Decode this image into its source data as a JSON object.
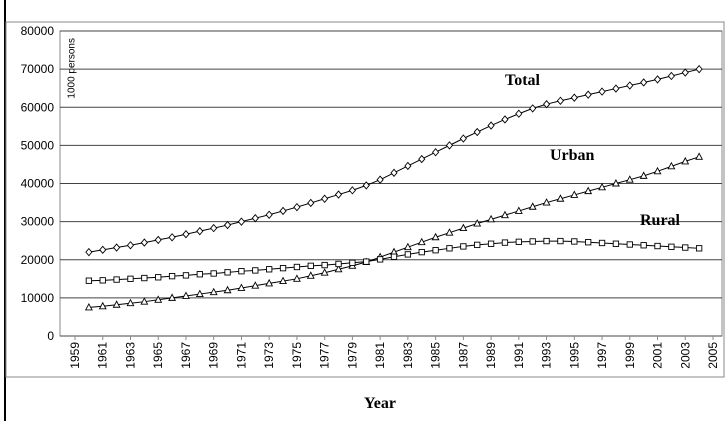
{
  "chart_data": {
    "type": "line",
    "x_label": "Year",
    "y_label": "1000 persons",
    "x": [
      1960,
      1961,
      1962,
      1963,
      1964,
      1965,
      1966,
      1967,
      1968,
      1969,
      1970,
      1971,
      1972,
      1973,
      1974,
      1975,
      1976,
      1977,
      1978,
      1979,
      1980,
      1981,
      1982,
      1983,
      1984,
      1985,
      1986,
      1987,
      1988,
      1989,
      1990,
      1991,
      1992,
      1993,
      1994,
      1995,
      1996,
      1997,
      1998,
      1999,
      2000,
      2001,
      2002,
      2003,
      2004
    ],
    "series": [
      {
        "name": "Total",
        "color": "#000000",
        "marker": "diamond",
        "values": [
          22000,
          22600,
          23200,
          23800,
          24500,
          25200,
          25900,
          26700,
          27500,
          28300,
          29100,
          30000,
          30900,
          31800,
          32800,
          33800,
          34900,
          36000,
          37100,
          38200,
          39500,
          41000,
          42800,
          44600,
          46400,
          48200,
          50000,
          51800,
          53500,
          55200,
          56800,
          58300,
          59700,
          60800,
          61700,
          62500,
          63300,
          64100,
          64900,
          65700,
          66500,
          67300,
          68200,
          69100,
          70000
        ]
      },
      {
        "name": "Urban",
        "color": "#000000",
        "marker": "triangle",
        "values": [
          7500,
          7800,
          8200,
          8600,
          9000,
          9500,
          10000,
          10500,
          11000,
          11500,
          12000,
          12600,
          13200,
          13800,
          14400,
          15000,
          15800,
          16600,
          17500,
          18400,
          19400,
          20700,
          22000,
          23300,
          24600,
          25900,
          27100,
          28300,
          29500,
          30600,
          31700,
          32800,
          33900,
          35000,
          36000,
          37000,
          38000,
          39000,
          40000,
          41000,
          42000,
          43200,
          44500,
          45800,
          47000
        ]
      },
      {
        "name": "Rural",
        "color": "#000000",
        "marker": "square",
        "values": [
          14500,
          14600,
          14800,
          15000,
          15200,
          15400,
          15700,
          15900,
          16200,
          16400,
          16700,
          17000,
          17200,
          17500,
          17800,
          18100,
          18400,
          18600,
          18900,
          19200,
          19500,
          20100,
          20800,
          21400,
          22000,
          22500,
          23000,
          23500,
          23900,
          24200,
          24500,
          24700,
          24800,
          24900,
          24900,
          24800,
          24600,
          24400,
          24200,
          24000,
          23800,
          23600,
          23400,
          23200,
          23000
        ]
      }
    ],
    "xlim": [
      1959,
      2005
    ],
    "xticks": [
      1959,
      1961,
      1963,
      1965,
      1967,
      1969,
      1971,
      1973,
      1975,
      1977,
      1979,
      1981,
      1983,
      1985,
      1987,
      1989,
      1991,
      1993,
      1995,
      1997,
      1999,
      2001,
      2003,
      2005
    ],
    "ylim": [
      0,
      80000
    ],
    "yticks": [
      0,
      10000,
      20000,
      30000,
      40000,
      50000,
      60000,
      70000,
      80000
    ],
    "grid": true
  }
}
